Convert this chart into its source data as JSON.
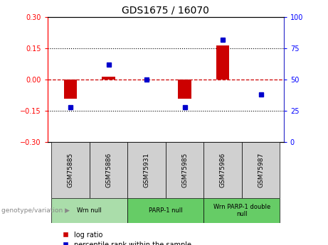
{
  "title": "GDS1675 / 16070",
  "samples": [
    "GSM75885",
    "GSM75886",
    "GSM75931",
    "GSM75985",
    "GSM75986",
    "GSM75987"
  ],
  "log_ratio": [
    -0.09,
    0.015,
    0.0,
    -0.09,
    0.165,
    0.0
  ],
  "percentile_rank": [
    28,
    62,
    50,
    28,
    82,
    38
  ],
  "ylim_left": [
    -0.3,
    0.3
  ],
  "ylim_right": [
    0,
    100
  ],
  "yticks_left": [
    -0.3,
    -0.15,
    0,
    0.15,
    0.3
  ],
  "yticks_right": [
    0,
    25,
    50,
    75,
    100
  ],
  "bar_color": "#cc0000",
  "dot_color": "#0000cc",
  "zero_line_color": "#cc0000",
  "group_labels": [
    "Wrn null",
    "PARP-1 null",
    "Wrn PARP-1 double\nnull"
  ],
  "group_starts": [
    0,
    2,
    4
  ],
  "group_ends": [
    2,
    4,
    6
  ],
  "group_colors": [
    "#aaddaa",
    "#66cc66",
    "#66cc66"
  ],
  "legend_bar_label": "log ratio",
  "legend_dot_label": "percentile rank within the sample",
  "genotype_label": "genotype/variation"
}
